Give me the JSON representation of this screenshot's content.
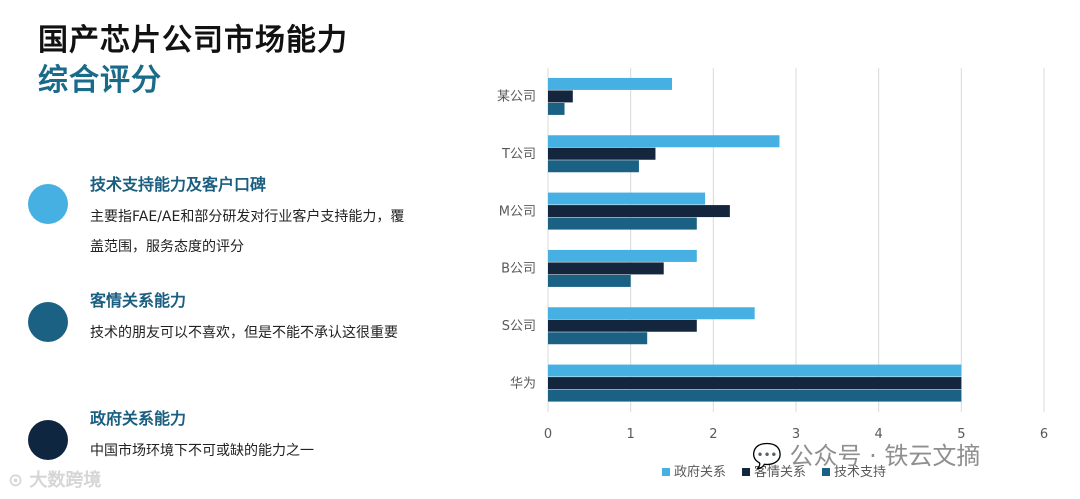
{
  "page": {
    "title": "国产芯片公司市场能力",
    "subtitle": "综合评分"
  },
  "features": [
    {
      "heading": "技术支持能力及客户口碑",
      "description": "主要指FAE/AE和部分研发对行业客户支持能力，覆盖范围，服务态度的评分",
      "color": "#45b0e1",
      "heading_color": "#1a5e80"
    },
    {
      "heading": "客情关系能力",
      "description": "技术的朋友可以不喜欢，但是不能不承认这很重要",
      "color": "#1b6184",
      "heading_color": "#1a5e80"
    },
    {
      "heading": "政府关系能力",
      "description": "中国市场环境下不可或缺的能力之一",
      "color": "#0f2640",
      "heading_color": "#1a5e80"
    }
  ],
  "watermarks": {
    "left": "大数跨境",
    "right": "公众号 · 铁云文摘",
    "right_icon": "wechat-icon",
    "left_icon": "weibo-icon"
  },
  "chart_data": {
    "type": "bar",
    "orientation": "horizontal",
    "categories": [
      "某公司",
      "T公司",
      "M公司",
      "B公司",
      "S公司",
      "华为"
    ],
    "series": [
      {
        "name": "政府关系",
        "color": "#45b0e1",
        "values": [
          1.5,
          2.8,
          1.9,
          1.8,
          2.5,
          5.0
        ]
      },
      {
        "name": "客情关系",
        "color": "#14263e",
        "values": [
          0.3,
          1.3,
          2.2,
          1.4,
          1.8,
          5.0
        ]
      },
      {
        "name": "技术支持",
        "color": "#1b6184",
        "values": [
          0.2,
          1.1,
          1.8,
          1.0,
          1.2,
          5.0
        ]
      }
    ],
    "xlim": [
      0,
      6
    ],
    "xticks": [
      "0",
      "1",
      "2",
      "3",
      "4",
      "5",
      "6"
    ],
    "grid": true,
    "legend": "bottom"
  }
}
